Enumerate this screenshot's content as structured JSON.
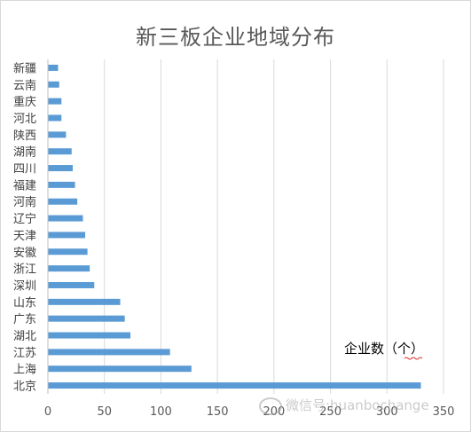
{
  "chart_data": {
    "type": "bar",
    "orientation": "horizontal",
    "title": "新三板企业地域分布",
    "categories": [
      "北京",
      "上海",
      "江苏",
      "湖北",
      "广东",
      "山东",
      "深圳",
      "浙江",
      "安徽",
      "天津",
      "辽宁",
      "河南",
      "福建",
      "四川",
      "湖南",
      "陕西",
      "河北",
      "重庆",
      "云南",
      "新疆"
    ],
    "values": [
      330,
      127,
      108,
      73,
      68,
      64,
      41,
      37,
      35,
      33,
      31,
      26,
      24,
      22,
      21,
      16,
      12,
      12,
      10,
      9
    ],
    "annotation": "企业数（个）",
    "xlim": [
      0,
      350
    ],
    "xticks": [
      0,
      50,
      100,
      150,
      200,
      250,
      300,
      350
    ],
    "grid": true,
    "bar_color": "#5b9bd5",
    "grid_color": "#d9d9d9"
  },
  "watermark": {
    "text": "微信号:huanbochange",
    "icon": "wechat-icon"
  }
}
